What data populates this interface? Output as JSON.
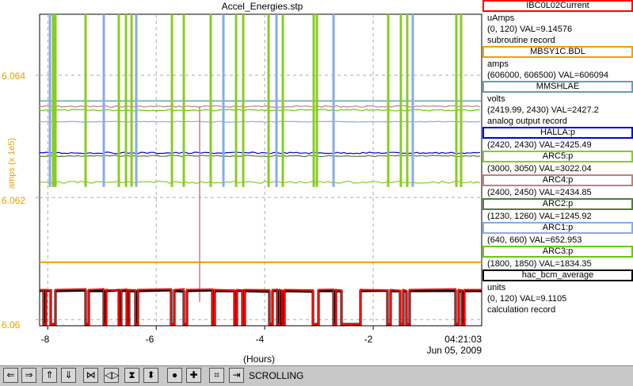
{
  "window": {
    "title": "Accel_Energies.stp"
  },
  "chart_data": {
    "type": "line",
    "title": "Accel_Energies.stp",
    "ylabel": "amps (x 1e5)",
    "xlabel": "(Hours)",
    "y_tick_labels": [
      "6.064",
      "6.062",
      "6.06"
    ],
    "x_tick_labels": [
      "-8",
      "-6",
      "-4",
      "-2"
    ],
    "end_time": "04:21:03",
    "end_date": "Jun 05, 2009",
    "ylim": [
      6.0599,
      6.065
    ],
    "xlim": [
      -8.15,
      0
    ],
    "grid": true,
    "legend_position": "right",
    "series": [
      {
        "name": "IBC0L02Current",
        "color": "#ff0000",
        "units": "uAmps",
        "range": "(0, 120)",
        "val": "VAL=9.14576",
        "record": "subroutine record",
        "level_y": 6.06049
      },
      {
        "name": "MBSY1C.BDL",
        "color": "#f0a000",
        "units": "amps",
        "range": "(606000, 606500)",
        "val": "VAL=606094",
        "record": "",
        "level_y": 6.06094
      },
      {
        "name": "MMSHLAE",
        "color": "#66a0a8",
        "units": "volts",
        "range": "(2419.99, 2430)",
        "val": "VAL=2427.2",
        "record": "analog output record",
        "level_y": 6.06358
      },
      {
        "name": "HALLA:p",
        "color": "#0000dd",
        "units": "",
        "range": "(2420, 2430)",
        "val": "VAL=2425.49",
        "record": "",
        "level_y": 6.06273
      },
      {
        "name": "ARC5:p",
        "color": "#88cc22",
        "units": "",
        "range": "(3000, 3050)",
        "val": "VAL=3022.04",
        "record": "",
        "level_y": 6.06225
      },
      {
        "name": "ARC4:p",
        "color": "#c08080",
        "units": "",
        "range": "(2400, 2450)",
        "val": "VAL=2434.85",
        "record": "",
        "level_y": 6.06349
      },
      {
        "name": "ARC2:p",
        "color": "#557744",
        "units": "",
        "range": "(1230, 1260)",
        "val": "VAL=1245.92",
        "record": "",
        "level_y": 6.06268
      },
      {
        "name": "ARC1:p",
        "color": "#88aaee",
        "units": "",
        "range": "(640, 660)",
        "val": "VAL=652.953",
        "record": "",
        "level_y": 6.06324
      },
      {
        "name": "ARC3:p",
        "color": "#66cc00",
        "units": "",
        "range": "(1800, 1850)",
        "val": "VAL=1834.35",
        "record": "",
        "level_y": 6.06343
      },
      {
        "name": "hac_bcm_average",
        "color": "#000000",
        "units": "units",
        "range": "(0, 120)",
        "val": "VAL=9.1105",
        "record": "calculation record",
        "level_y": 6.06047
      }
    ]
  },
  "toolbar": {
    "buttons": [
      {
        "name": "scroll-left-button",
        "glyph": "⇐"
      },
      {
        "name": "scroll-right-button",
        "glyph": "⇒"
      },
      {
        "name": "scroll-up-button",
        "glyph": "⇑"
      },
      {
        "name": "scroll-down-button",
        "glyph": "⇓"
      },
      {
        "name": "zoom-in-x-button",
        "glyph": "⋈"
      },
      {
        "name": "zoom-out-x-button",
        "glyph": "◁▷"
      },
      {
        "name": "zoom-in-y-button",
        "glyph": "⧗"
      },
      {
        "name": "zoom-out-y-button",
        "glyph": "⬍"
      },
      {
        "name": "autoscale-button",
        "glyph": "●"
      },
      {
        "name": "add-button",
        "glyph": "✚"
      },
      {
        "name": "fit-button",
        "glyph": "⌗"
      },
      {
        "name": "go-to-end-button",
        "glyph": "⇥"
      }
    ],
    "status": "SCROLLING"
  }
}
